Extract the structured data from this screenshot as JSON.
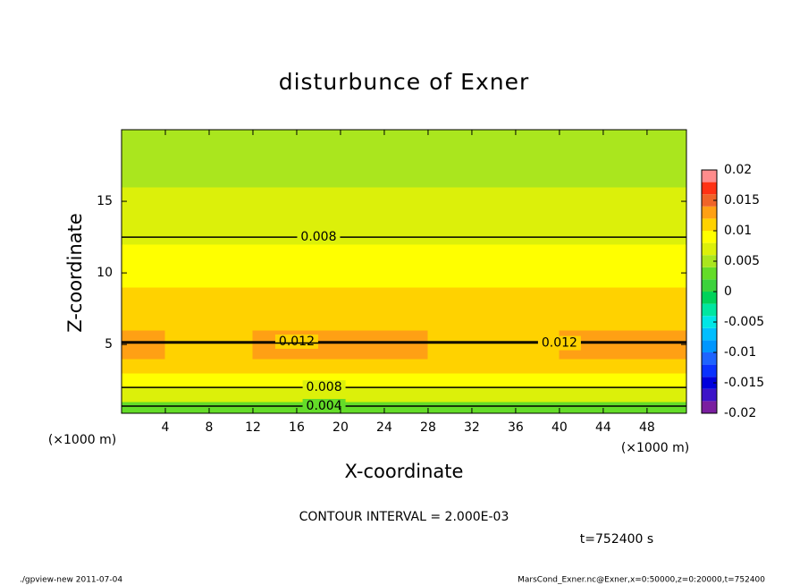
{
  "chart_data": {
    "type": "contour",
    "title": "disturbunce of Exner",
    "x_label": "X-coordinate",
    "y_label": "Z-coordinate",
    "x_unit": "(×1000 m)",
    "y_unit": "(×1000 m)",
    "xlim": [
      0,
      51.6
    ],
    "ylim": [
      0.2,
      20
    ],
    "xticks": [
      4,
      8,
      12,
      16,
      20,
      24,
      28,
      32,
      36,
      40,
      44,
      48
    ],
    "yticks": [
      5,
      10,
      15
    ],
    "levels": [
      -0.02,
      -0.018,
      -0.016,
      -0.014,
      -0.012,
      -0.01,
      -0.008,
      -0.006,
      -0.004,
      -0.002,
      0,
      0.002,
      0.004,
      0.006,
      0.008,
      0.01,
      0.012,
      0.014,
      0.016,
      0.018,
      0.02
    ],
    "colors": [
      "#7a1fa0",
      "#3c14c8",
      "#0000dc",
      "#0a32ff",
      "#1e64ff",
      "#0096ff",
      "#00beff",
      "#00e6e6",
      "#00e6a0",
      "#00d25a",
      "#3cd23c",
      "#64dc28",
      "#aae61e",
      "#dcf00a",
      "#ffff00",
      "#ffd200",
      "#ffa014",
      "#f06428",
      "#ff3214",
      "#ff8c8c"
    ],
    "colorbar_ticks": [
      -0.02,
      -0.015,
      -0.01,
      -0.005,
      0,
      0.005,
      0.01,
      0.015,
      0.02
    ],
    "z_x": [
      2,
      6,
      10,
      14,
      18,
      22,
      26,
      30,
      34,
      38,
      42,
      46,
      50
    ],
    "z_y": [
      0.5,
      1.5,
      2.5,
      3.5,
      4.5,
      5.5,
      6.5,
      7.5,
      8.5,
      9.5,
      10.5,
      11.5,
      12.5,
      13.5,
      14.5,
      15.5,
      16.5,
      17.5,
      18.5,
      19.5
    ],
    "z": [
      [
        0.003,
        0.003,
        0.003,
        0.003,
        0.003,
        0.003,
        0.003,
        0.003,
        0.003,
        0.003,
        0.003,
        0.003,
        0.003
      ],
      [
        0.006,
        0.006,
        0.006,
        0.006,
        0.006,
        0.006,
        0.006,
        0.006,
        0.006,
        0.006,
        0.006,
        0.006,
        0.006
      ],
      [
        0.0085,
        0.0085,
        0.0085,
        0.0085,
        0.0085,
        0.0085,
        0.0085,
        0.0085,
        0.0085,
        0.0085,
        0.0085,
        0.0085,
        0.0085
      ],
      [
        0.0105,
        0.0105,
        0.0105,
        0.0105,
        0.0105,
        0.0105,
        0.0105,
        0.0105,
        0.0105,
        0.0105,
        0.0105,
        0.0105,
        0.0105
      ],
      [
        0.0125,
        0.0115,
        0.0115,
        0.0125,
        0.0125,
        0.0125,
        0.0125,
        0.0115,
        0.0115,
        0.0115,
        0.0125,
        0.0125,
        0.0125
      ],
      [
        0.0125,
        0.0115,
        0.0115,
        0.0125,
        0.0125,
        0.0125,
        0.0125,
        0.0115,
        0.0115,
        0.0115,
        0.0125,
        0.0125,
        0.0125
      ],
      [
        0.0112,
        0.0112,
        0.0112,
        0.0112,
        0.0112,
        0.0112,
        0.0112,
        0.0112,
        0.0112,
        0.0112,
        0.0112,
        0.0112,
        0.0112
      ],
      [
        0.0108,
        0.0108,
        0.0108,
        0.0108,
        0.0108,
        0.0108,
        0.0108,
        0.0108,
        0.0108,
        0.0108,
        0.0108,
        0.0108,
        0.0108
      ],
      [
        0.0104,
        0.0104,
        0.0104,
        0.0104,
        0.0104,
        0.0104,
        0.0104,
        0.0104,
        0.0104,
        0.0104,
        0.0104,
        0.0104,
        0.0104
      ],
      [
        0.0099,
        0.0099,
        0.0099,
        0.0099,
        0.0099,
        0.0099,
        0.0099,
        0.0099,
        0.0099,
        0.0099,
        0.0099,
        0.0099,
        0.0099
      ],
      [
        0.0095,
        0.0095,
        0.0095,
        0.0095,
        0.0095,
        0.0095,
        0.0095,
        0.0095,
        0.0095,
        0.0095,
        0.0095,
        0.0095,
        0.0095
      ],
      [
        0.009,
        0.009,
        0.009,
        0.009,
        0.009,
        0.009,
        0.009,
        0.009,
        0.009,
        0.009,
        0.009,
        0.009,
        0.009
      ],
      [
        0.0079,
        0.0079,
        0.0079,
        0.0079,
        0.0079,
        0.0079,
        0.0079,
        0.0079,
        0.0079,
        0.0079,
        0.0079,
        0.0079,
        0.0079
      ],
      [
        0.0075,
        0.0075,
        0.0075,
        0.0075,
        0.0075,
        0.0075,
        0.0075,
        0.0075,
        0.0075,
        0.0075,
        0.0075,
        0.0075,
        0.0075
      ],
      [
        0.0071,
        0.0071,
        0.0071,
        0.0071,
        0.0071,
        0.0071,
        0.0071,
        0.0071,
        0.0071,
        0.0071,
        0.0071,
        0.0071,
        0.0071
      ],
      [
        0.0065,
        0.0065,
        0.0065,
        0.0065,
        0.0065,
        0.0065,
        0.0065,
        0.0065,
        0.0065,
        0.0065,
        0.0065,
        0.0065,
        0.0065
      ],
      [
        0.0059,
        0.0059,
        0.0059,
        0.0059,
        0.0059,
        0.0059,
        0.0059,
        0.0059,
        0.0059,
        0.0059,
        0.0059,
        0.0059,
        0.0059
      ],
      [
        0.0055,
        0.0055,
        0.0055,
        0.0055,
        0.0055,
        0.0055,
        0.0055,
        0.0055,
        0.0055,
        0.0055,
        0.0055,
        0.0055,
        0.0055
      ],
      [
        0.005,
        0.005,
        0.005,
        0.005,
        0.005,
        0.005,
        0.005,
        0.005,
        0.005,
        0.005,
        0.005,
        0.005,
        0.005
      ],
      [
        0.0045,
        0.0045,
        0.0045,
        0.0045,
        0.0045,
        0.0045,
        0.0045,
        0.0045,
        0.0045,
        0.0045,
        0.0045,
        0.0045,
        0.0045
      ]
    ],
    "contour_labels": [
      {
        "value": 0.008,
        "x": 18,
        "z": 12.5
      },
      {
        "value": 0.012,
        "x": 16,
        "z": 5.2
      },
      {
        "value": 0.012,
        "x": 40,
        "z": 5.1
      },
      {
        "value": 0.008,
        "x": 18.5,
        "z": 2.0
      },
      {
        "value": 0.004,
        "x": 18.5,
        "z": 0.7
      }
    ],
    "contour_interval": "CONTOUR INTERVAL = 2.000E-03",
    "time_label": "t=752400 s",
    "footer_left": "./gpview-new   2011-07-04",
    "footer_right": "MarsCond_Exner.nc@Exner,x=0:50000,z=0:20000,t=752400"
  }
}
